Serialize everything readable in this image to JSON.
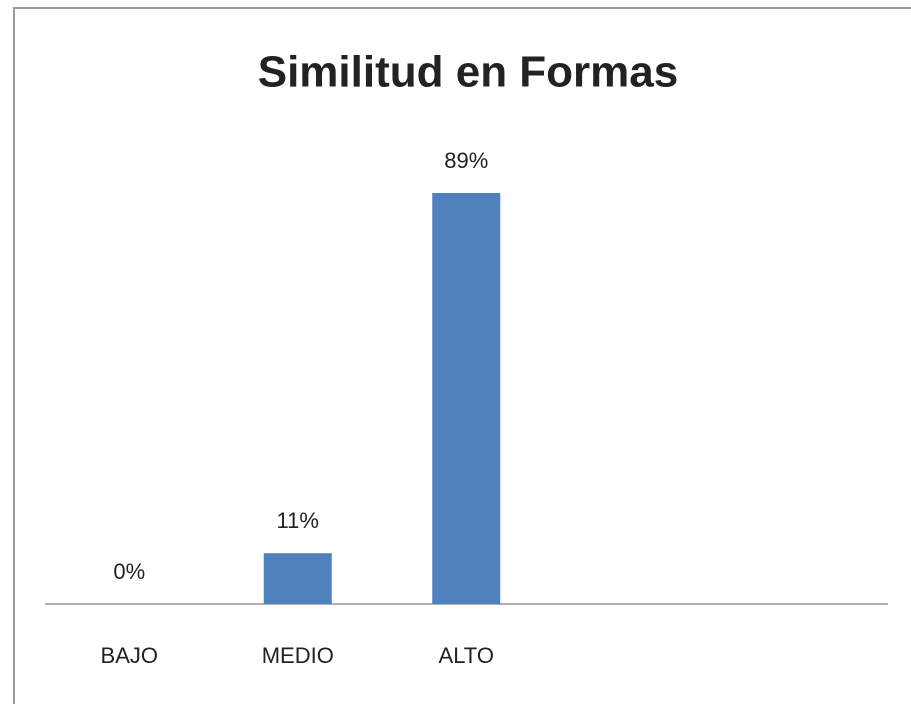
{
  "chart_data": {
    "type": "bar",
    "title": "Similitud en Formas",
    "categories": [
      "BAJO",
      "MEDIO",
      "ALTO"
    ],
    "values": [
      0,
      11,
      89
    ],
    "value_labels": [
      "0%",
      "11%",
      "89%"
    ],
    "color": "#4f81bd"
  }
}
